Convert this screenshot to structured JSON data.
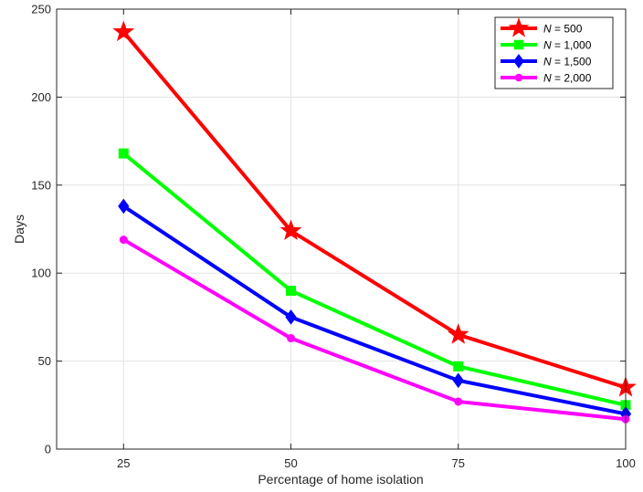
{
  "chart_data": {
    "type": "line",
    "title": "",
    "xlabel": "Percentage of home isolation",
    "ylabel": "Days",
    "x": [
      25,
      50,
      75,
      100
    ],
    "xlim": [
      15,
      100
    ],
    "ylim": [
      0,
      250
    ],
    "xticks": [
      25,
      50,
      75,
      100
    ],
    "yticks": [
      0,
      50,
      100,
      150,
      200,
      250
    ],
    "grid": true,
    "legend_position": "top-right",
    "series": [
      {
        "name": "N = 500",
        "name_var": "N",
        "name_value": " = 500",
        "color": "#ff0000",
        "marker": "star",
        "values": [
          237,
          124,
          65,
          35
        ]
      },
      {
        "name": "N = 1,000",
        "name_var": "N",
        "name_value": " = 1,000",
        "color": "#00ff00",
        "marker": "square",
        "values": [
          168,
          90,
          47,
          25
        ]
      },
      {
        "name": "N = 1,500",
        "name_var": "N",
        "name_value": " = 1,500",
        "color": "#0000ff",
        "marker": "diamond",
        "values": [
          138,
          75,
          39,
          20
        ]
      },
      {
        "name": "N = 2,000",
        "name_var": "N",
        "name_value": " = 2,000",
        "color": "#ff00ff",
        "marker": "circle",
        "values": [
          119,
          63,
          27,
          17
        ]
      }
    ]
  }
}
